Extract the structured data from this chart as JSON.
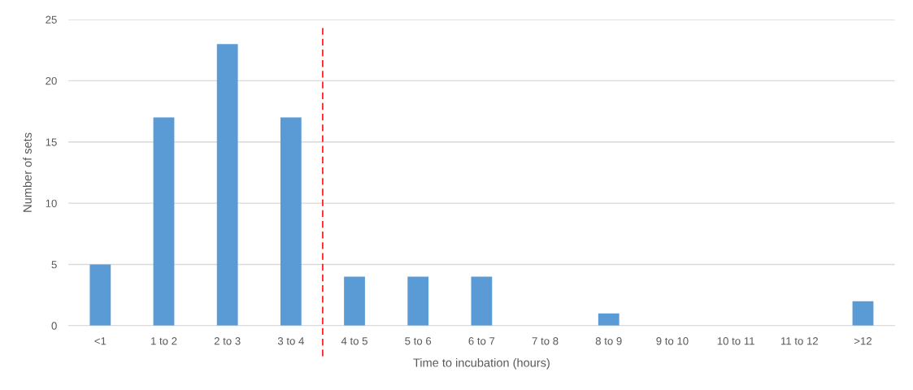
{
  "chart_data": {
    "type": "bar",
    "xlabel": "Time to incubation (hours)",
    "ylabel": "Number of sets",
    "categories": [
      "<1",
      "1 to 2",
      "2 to 3",
      "3 to 4",
      "4 to 5",
      "5 to 6",
      "6 to 7",
      "7 to 8",
      "8 to 9",
      "9 to 10",
      "10 to 11",
      "11 to 12",
      ">12"
    ],
    "values": [
      5,
      17,
      23,
      17,
      4,
      4,
      4,
      0,
      1,
      0,
      0,
      0,
      2
    ],
    "color": "#5b9bd5",
    "ylim": [
      0,
      25
    ],
    "yticks": [
      0,
      5,
      10,
      15,
      20,
      25
    ],
    "grid": "y"
  }
}
